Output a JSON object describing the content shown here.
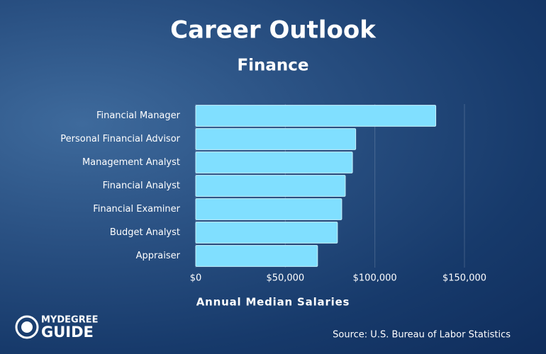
{
  "chart_data": {
    "type": "hbar",
    "title": "Career Outlook",
    "subtitle": "Finance",
    "categories": [
      "Financial Manager",
      "Personal Financial Advisor",
      "Management Analyst",
      "Financial Analyst",
      "Financial Examiner",
      "Budget Analyst",
      "Appraiser"
    ],
    "values": [
      134000,
      89300,
      87500,
      83500,
      81500,
      79100,
      68000
    ],
    "color": "#80dfff",
    "xlim": [
      0,
      150000
    ],
    "xticks": [
      {
        "value": 0,
        "label": "$0"
      },
      {
        "value": 50000,
        "label": "$50,000"
      },
      {
        "value": 100000,
        "label": "$100,000"
      },
      {
        "value": 150000,
        "label": "$150,000"
      }
    ],
    "grid": true,
    "xlabel": "Annual Median Salaries",
    "source": "Source: U.S. Bureau of Labor Statistics",
    "logo": {
      "line1": "MYDEGREE",
      "line2": "GUIDE"
    }
  }
}
